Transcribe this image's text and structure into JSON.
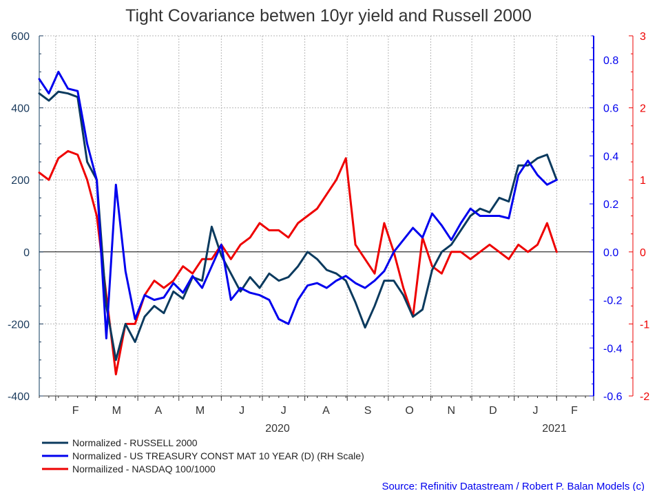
{
  "chart_data": {
    "type": "line",
    "title": "Tight Covariance betwen 10yr yield and Russell 2000",
    "x_axis": {
      "months": [
        "F",
        "M",
        "A",
        "M",
        "J",
        "J",
        "A",
        "S",
        "O",
        "N",
        "D",
        "J",
        "F"
      ],
      "years": [
        "2020",
        "2021"
      ],
      "range": [
        "2020-01-20",
        "2021-02-28"
      ]
    },
    "y_left": {
      "ticks": [
        "600",
        "400",
        "200",
        "0",
        "-200",
        "-400"
      ],
      "range": [
        -400,
        600
      ],
      "color": "#1a3a5c"
    },
    "y_right1": {
      "ticks": [
        "0.8",
        "0.6",
        "0.4",
        "0.2",
        "0.0",
        "-0.2",
        "-0.4",
        "-0.6"
      ],
      "range": [
        -0.6,
        0.9
      ],
      "color": "#0000ee",
      "label": "RH Scale"
    },
    "y_right2": {
      "ticks": [
        "3",
        "2",
        "1",
        "0",
        "-1",
        "-2"
      ],
      "range": [
        -2,
        3
      ],
      "color": "#ee0000"
    },
    "grid": true,
    "legend_position": "bottom-left",
    "series": [
      {
        "name": "Normalized - RUSSELL 2000",
        "axis": "left",
        "color": "#0b3a5e",
        "x": [
          "2020-01-20",
          "2020-01-27",
          "2020-02-03",
          "2020-02-10",
          "2020-02-17",
          "2020-02-24",
          "2020-03-02",
          "2020-03-09",
          "2020-03-16",
          "2020-03-23",
          "2020-03-30",
          "2020-04-06",
          "2020-04-13",
          "2020-04-20",
          "2020-04-27",
          "2020-05-04",
          "2020-05-11",
          "2020-05-18",
          "2020-05-25",
          "2020-06-01",
          "2020-06-08",
          "2020-06-15",
          "2020-06-22",
          "2020-06-29",
          "2020-07-06",
          "2020-07-13",
          "2020-07-20",
          "2020-07-27",
          "2020-08-03",
          "2020-08-10",
          "2020-08-17",
          "2020-08-24",
          "2020-08-31",
          "2020-09-07",
          "2020-09-14",
          "2020-09-21",
          "2020-09-28",
          "2020-10-05",
          "2020-10-12",
          "2020-10-19",
          "2020-10-26",
          "2020-11-02",
          "2020-11-09",
          "2020-11-16",
          "2020-11-23",
          "2020-11-30",
          "2020-12-07",
          "2020-12-14",
          "2020-12-21",
          "2020-12-28",
          "2021-01-04",
          "2021-01-11",
          "2021-01-18",
          "2021-01-25",
          "2021-02-01"
        ],
        "values": [
          440,
          420,
          445,
          440,
          430,
          250,
          200,
          -150,
          -300,
          -200,
          -250,
          -180,
          -150,
          -170,
          -110,
          -130,
          -70,
          -80,
          70,
          -10,
          -60,
          -110,
          -70,
          -100,
          -60,
          -80,
          -70,
          -40,
          0,
          -20,
          -50,
          -60,
          -80,
          -140,
          -210,
          -150,
          -80,
          -80,
          -120,
          -180,
          -160,
          -50,
          0,
          20,
          60,
          100,
          120,
          110,
          150,
          140,
          240,
          240,
          260,
          270,
          200
        ]
      },
      {
        "name": "Normalized - US TREASURY CONST MAT 10 YEAR (D) (RH Scale)",
        "axis": "right1",
        "color": "#0000ee",
        "x": [
          "2020-01-20",
          "2020-01-27",
          "2020-02-03",
          "2020-02-10",
          "2020-02-17",
          "2020-02-24",
          "2020-03-02",
          "2020-03-09",
          "2020-03-16",
          "2020-03-23",
          "2020-03-30",
          "2020-04-06",
          "2020-04-13",
          "2020-04-20",
          "2020-04-27",
          "2020-05-04",
          "2020-05-11",
          "2020-05-18",
          "2020-05-25",
          "2020-06-01",
          "2020-06-08",
          "2020-06-15",
          "2020-06-22",
          "2020-06-29",
          "2020-07-06",
          "2020-07-13",
          "2020-07-20",
          "2020-07-27",
          "2020-08-03",
          "2020-08-10",
          "2020-08-17",
          "2020-08-24",
          "2020-08-31",
          "2020-09-07",
          "2020-09-14",
          "2020-09-21",
          "2020-09-28",
          "2020-10-05",
          "2020-10-12",
          "2020-10-19",
          "2020-10-26",
          "2020-11-02",
          "2020-11-09",
          "2020-11-16",
          "2020-11-23",
          "2020-11-30",
          "2020-12-07",
          "2020-12-14",
          "2020-12-21",
          "2020-12-28",
          "2021-01-04",
          "2021-01-11",
          "2021-01-18",
          "2021-01-25",
          "2021-02-01"
        ],
        "values": [
          0.72,
          0.66,
          0.75,
          0.68,
          0.67,
          0.45,
          0.3,
          -0.36,
          0.28,
          -0.08,
          -0.28,
          -0.18,
          -0.2,
          -0.19,
          -0.13,
          -0.17,
          -0.1,
          -0.15,
          -0.06,
          0.03,
          -0.2,
          -0.15,
          -0.17,
          -0.18,
          -0.2,
          -0.28,
          -0.3,
          -0.2,
          -0.14,
          -0.13,
          -0.15,
          -0.12,
          -0.1,
          -0.13,
          -0.15,
          -0.12,
          -0.08,
          0.0,
          0.05,
          0.1,
          0.06,
          0.16,
          0.11,
          0.05,
          0.12,
          0.18,
          0.15,
          0.15,
          0.15,
          0.14,
          0.32,
          0.38,
          0.32,
          0.28,
          0.3
        ]
      },
      {
        "name": "Normailized - NASDAQ 100/1000",
        "axis": "right2",
        "color": "#ee0000",
        "x": [
          "2020-01-20",
          "2020-01-27",
          "2020-02-03",
          "2020-02-10",
          "2020-02-17",
          "2020-02-24",
          "2020-03-02",
          "2020-03-09",
          "2020-03-16",
          "2020-03-23",
          "2020-03-30",
          "2020-04-06",
          "2020-04-13",
          "2020-04-20",
          "2020-04-27",
          "2020-05-04",
          "2020-05-11",
          "2020-05-18",
          "2020-05-25",
          "2020-06-01",
          "2020-06-08",
          "2020-06-15",
          "2020-06-22",
          "2020-06-29",
          "2020-07-06",
          "2020-07-13",
          "2020-07-20",
          "2020-07-27",
          "2020-08-03",
          "2020-08-10",
          "2020-08-17",
          "2020-08-24",
          "2020-08-31",
          "2020-09-07",
          "2020-09-14",
          "2020-09-21",
          "2020-09-28",
          "2020-10-05",
          "2020-10-12",
          "2020-10-19",
          "2020-10-26",
          "2020-11-02",
          "2020-11-09",
          "2020-11-16",
          "2020-11-23",
          "2020-11-30",
          "2020-12-07",
          "2020-12-14",
          "2020-12-21",
          "2020-12-28",
          "2021-01-04",
          "2021-01-11",
          "2021-01-18",
          "2021-01-25",
          "2021-02-01"
        ],
        "values": [
          1.1,
          1.0,
          1.3,
          1.4,
          1.35,
          1.0,
          0.5,
          -0.6,
          -1.7,
          -1.0,
          -1.0,
          -0.6,
          -0.4,
          -0.5,
          -0.4,
          -0.2,
          -0.3,
          -0.1,
          -0.1,
          0.1,
          -0.1,
          0.1,
          0.2,
          0.4,
          0.3,
          0.3,
          0.2,
          0.4,
          0.5,
          0.6,
          0.8,
          1.0,
          1.3,
          0.1,
          -0.1,
          -0.3,
          0.4,
          0.0,
          -0.5,
          -0.9,
          0.2,
          -0.2,
          -0.3,
          0.0,
          0.0,
          -0.1,
          0.0,
          0.1,
          0.0,
          -0.1,
          0.1,
          0.0,
          0.1,
          0.4,
          0.0
        ]
      }
    ]
  },
  "source_text": "Source: Refinitiv Datastream / Robert P. Balan Models (c)"
}
